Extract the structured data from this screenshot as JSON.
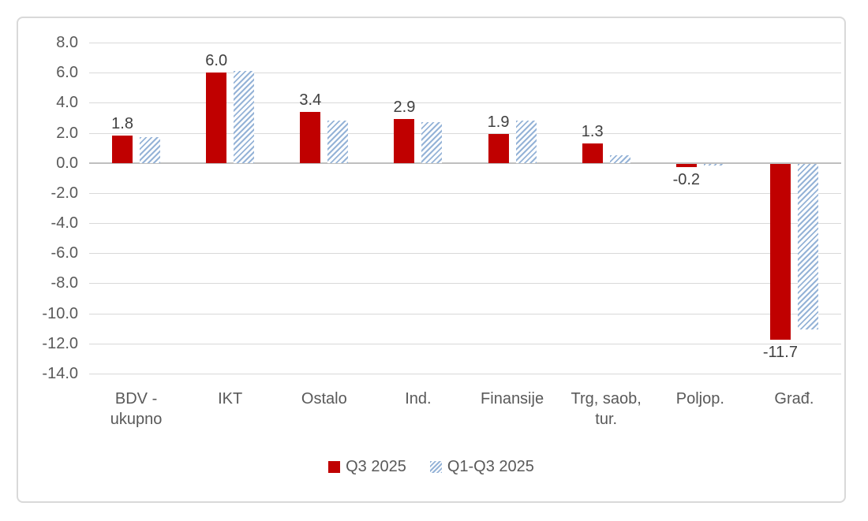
{
  "chart_data": {
    "type": "bar",
    "categories": [
      "BDV -\nukupno",
      "IKT",
      "Ostalo",
      "Ind.",
      "Finansije",
      "Trg, saob,\ntur.",
      "Poljop.",
      "Građ."
    ],
    "series": [
      {
        "name": "Q3 2025",
        "color": "#C00000",
        "fill": "solid",
        "values": [
          1.8,
          6.0,
          3.4,
          2.9,
          1.9,
          1.3,
          -0.2,
          -11.7
        ],
        "data_labels": [
          "1.8",
          "6.0",
          "3.4",
          "2.9",
          "1.9",
          "1.3",
          "-0.2",
          "-11.7"
        ]
      },
      {
        "name": "Q1-Q3 2025",
        "color": "#95B3D7",
        "fill": "diagonal-hatch",
        "values": [
          1.7,
          6.1,
          2.8,
          2.7,
          2.8,
          0.5,
          -0.1,
          -11.0
        ],
        "data_labels": null
      }
    ],
    "title": "",
    "xlabel": "",
    "ylabel": "",
    "ylim": [
      -14.0,
      8.0
    ],
    "ytick_step": 2.0,
    "ytick_labels": [
      "8.0",
      "6.0",
      "4.0",
      "2.0",
      "0.0",
      "-2.0",
      "-4.0",
      "-6.0",
      "-8.0",
      "-10.0",
      "-12.0",
      "-14.0"
    ],
    "grid": true,
    "legend_position": "bottom",
    "gridline_color": "#D9D9D9",
    "axis_text_color": "#595959",
    "data_label_color": "#404040"
  },
  "legend": {
    "items": [
      {
        "label": "Q3 2025"
      },
      {
        "label": "Q1-Q3 2025"
      }
    ]
  }
}
